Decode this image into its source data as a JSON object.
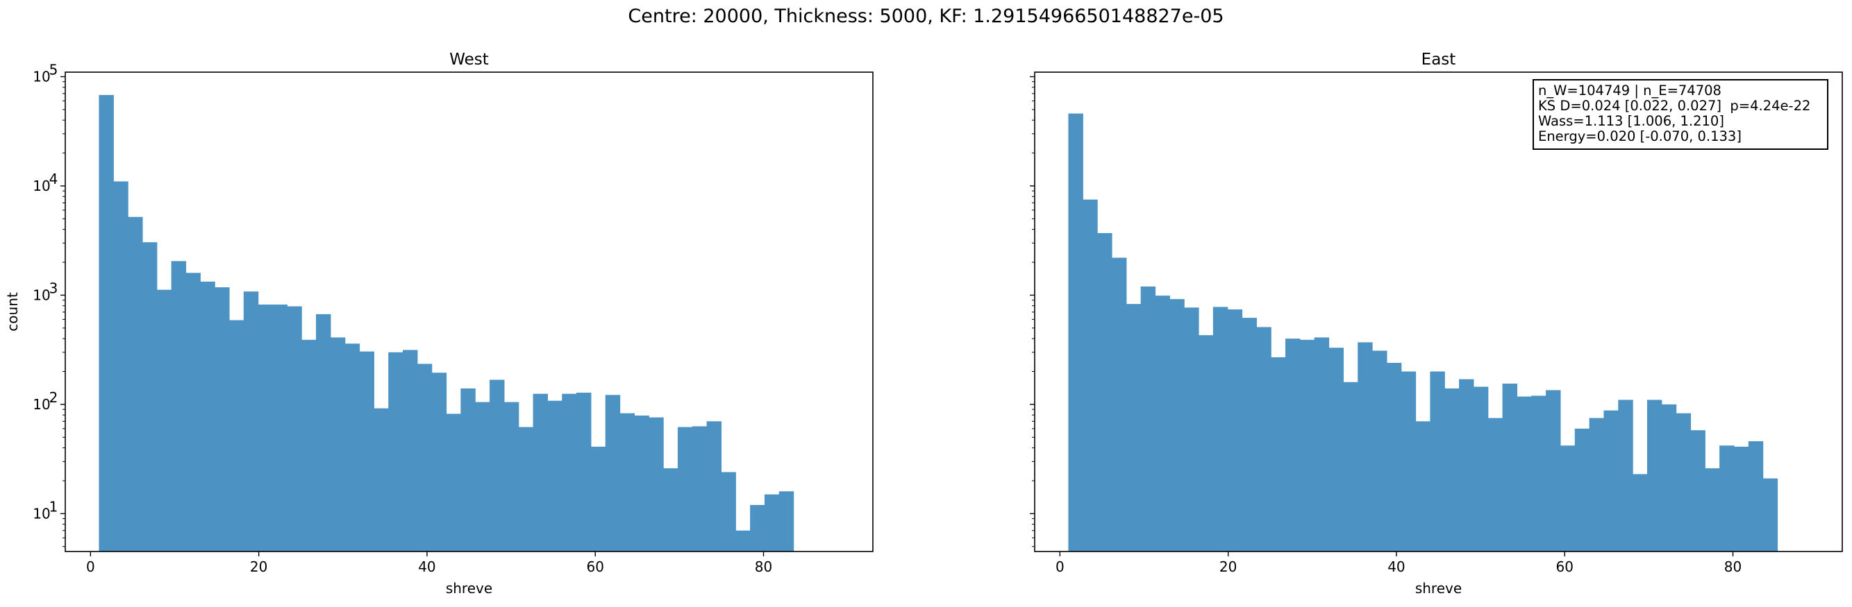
{
  "suptitle": "Centre: 20000, Thickness: 5000, KF: 1.2915496650148827e-05",
  "chart_data": [
    {
      "type": "bar",
      "title": "West",
      "xlabel": "shreve",
      "ylabel": "count",
      "yscale": "log",
      "xlim": [
        -3,
        93
      ],
      "ylim": [
        4.5,
        110000
      ],
      "xticks": [
        0,
        20,
        40,
        60,
        80
      ],
      "yticks": [
        {
          "value": 10,
          "label": "10",
          "exp": "1"
        },
        {
          "value": 100,
          "label": "10",
          "exp": "2"
        },
        {
          "value": 1000,
          "label": "10",
          "exp": "3"
        },
        {
          "value": 10000,
          "label": "10",
          "exp": "4"
        },
        {
          "value": 100000,
          "label": "10",
          "exp": "5"
        }
      ],
      "bin_start": 1,
      "bin_width": 1.72,
      "values": [
        68000,
        11000,
        5200,
        3050,
        1120,
        2050,
        1600,
        1330,
        1180,
        590,
        1080,
        820,
        820,
        790,
        390,
        670,
        410,
        360,
        305,
        92,
        300,
        315,
        235,
        195,
        82,
        140,
        105,
        168,
        105,
        62,
        125,
        108,
        125,
        128,
        41,
        122,
        83,
        79,
        76,
        26,
        62,
        63,
        70,
        24,
        7,
        12,
        15,
        16
      ],
      "bar_color": "#4c93c4",
      "grid": false,
      "show_ylabel": true,
      "show_ytick_labels": true
    },
    {
      "type": "bar",
      "title": "East",
      "xlabel": "shreve",
      "ylabel": "",
      "yscale": "log",
      "xlim": [
        -3,
        93
      ],
      "ylim": [
        4.5,
        110000
      ],
      "xticks": [
        0,
        20,
        40,
        60,
        80
      ],
      "yticks": [
        {
          "value": 10,
          "label": "10",
          "exp": "1"
        },
        {
          "value": 100,
          "label": "10",
          "exp": "2"
        },
        {
          "value": 1000,
          "label": "10",
          "exp": "3"
        },
        {
          "value": 10000,
          "label": "10",
          "exp": "4"
        },
        {
          "value": 100000,
          "label": "10",
          "exp": "5"
        }
      ],
      "bin_start": 1,
      "bin_width": 1.72,
      "values": [
        46000,
        7500,
        3700,
        2200,
        830,
        1200,
        990,
        920,
        770,
        430,
        780,
        740,
        620,
        510,
        270,
        400,
        390,
        410,
        330,
        160,
        370,
        310,
        240,
        200,
        70,
        200,
        140,
        170,
        145,
        75,
        155,
        118,
        120,
        135,
        42,
        60,
        75,
        88,
        110,
        23,
        110,
        100,
        83,
        58,
        26,
        42,
        41,
        46,
        21
      ],
      "bar_color": "#4c93c4",
      "grid": false,
      "show_ylabel": false,
      "show_ytick_labels": false
    }
  ],
  "stats_box": {
    "line1": "n_W=104749 | n_E=74708",
    "line2": "KS D=0.024 [0.022, 0.027]  p=4.24e-22",
    "line3": "Wass=1.113 [1.006, 1.210]",
    "line4": "Energy=0.020 [-0.070, 0.133]"
  }
}
